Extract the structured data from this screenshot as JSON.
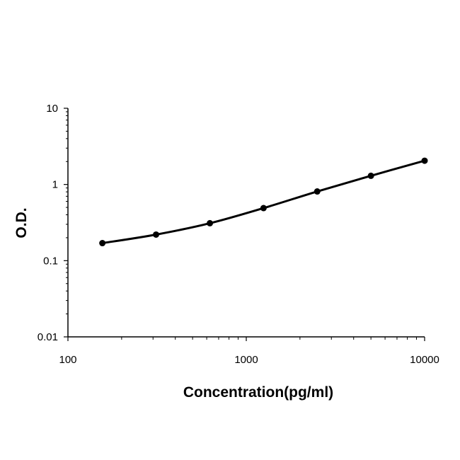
{
  "chart_data": {
    "type": "line",
    "title": "",
    "xlabel": "Concentration(pg/ml)",
    "ylabel": "O.D.",
    "x_scale": "log",
    "y_scale": "log",
    "xlim": [
      100,
      10000
    ],
    "ylim": [
      0.01,
      10
    ],
    "x_ticks": [
      "100",
      "1000",
      "10000"
    ],
    "y_ticks": [
      "0.01",
      "0.1",
      "1",
      "10"
    ],
    "grid": false,
    "legend": "none",
    "series": [
      {
        "x": [
          156,
          312,
          625,
          1250,
          2500,
          5000,
          10000
        ],
        "y": [
          0.17,
          0.22,
          0.31,
          0.49,
          0.81,
          1.3,
          2.05
        ]
      }
    ],
    "line_color": "#000000",
    "marker_color": "#000000"
  }
}
